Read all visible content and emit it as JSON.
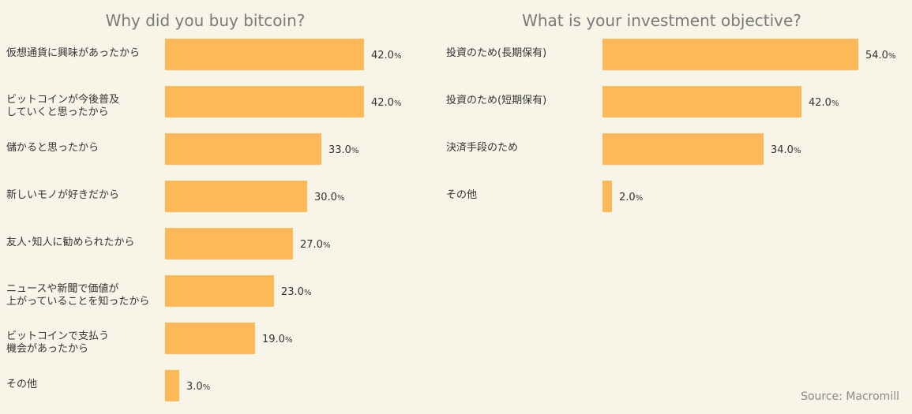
{
  "bar_color": "#fdb857",
  "background": "#f7f4e8",
  "source": "Source: Macromill",
  "chart_data": [
    {
      "type": "bar",
      "orientation": "horizontal",
      "title": "Why did you buy bitcoin?",
      "unit": "%",
      "categories": [
        "仮想通貨に興味があったから",
        "ビットコインが今後普及\nしていくと思ったから",
        "儲かると思ったから",
        "新しいモノが好きだから",
        "友人･知人に勧められたから",
        "ニュースや新聞で価値が\n上がっていることを知ったから",
        "ビットコインで支払う\n機会があったから",
        "その他"
      ],
      "values": [
        42.0,
        42.0,
        33.0,
        30.0,
        27.0,
        23.0,
        19.0,
        3.0
      ],
      "grid": false
    },
    {
      "type": "bar",
      "orientation": "horizontal",
      "title": "What is your investment objective?",
      "unit": "%",
      "categories": [
        "投資のため(長期保有)",
        "投資のため(短期保有)",
        "決済手段のため",
        "その他"
      ],
      "values": [
        54.0,
        42.0,
        34.0,
        2.0
      ],
      "grid": false
    }
  ]
}
